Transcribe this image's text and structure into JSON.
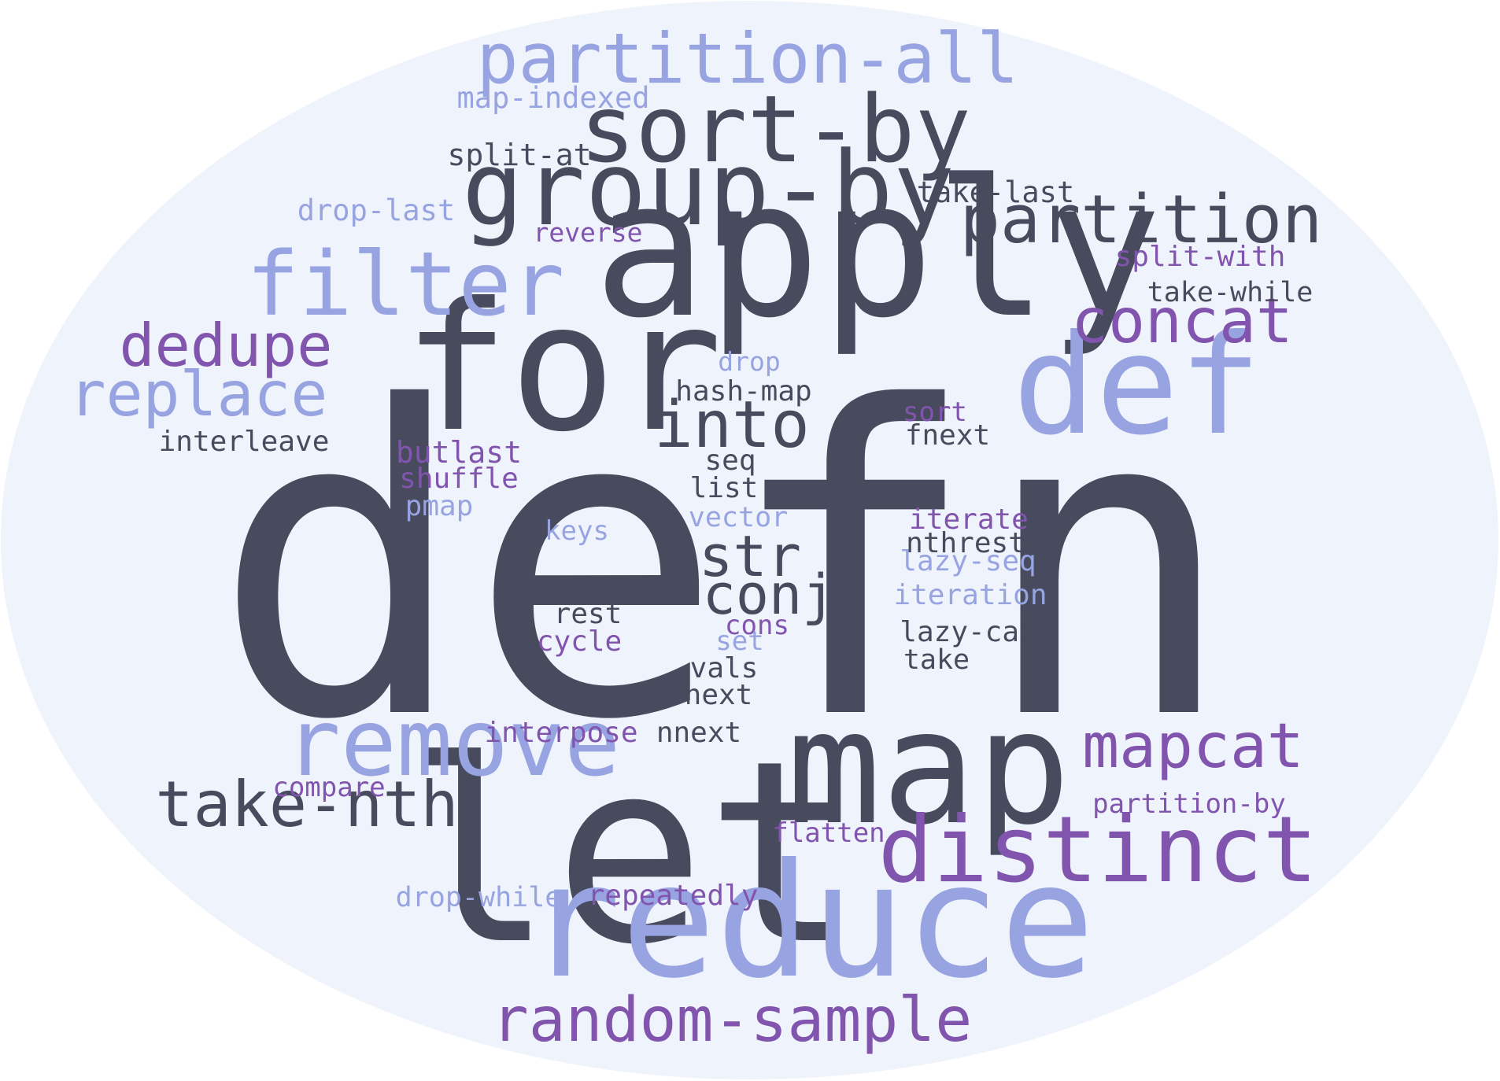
{
  "colors": {
    "background": "#ffffff",
    "ellipse": "#eff3fb",
    "dark": "#474b5d",
    "purple": "#8154ae",
    "lavender": "#98a4e2"
  },
  "words": [
    {
      "text": "defn",
      "color": "dark"
    },
    {
      "text": "apply",
      "color": "dark"
    },
    {
      "text": "let",
      "color": "dark"
    },
    {
      "text": "for",
      "color": "dark"
    },
    {
      "text": "map",
      "color": "dark"
    },
    {
      "text": "reduce",
      "color": "lavender"
    },
    {
      "text": "def",
      "color": "lavender"
    },
    {
      "text": "group-by",
      "color": "dark"
    },
    {
      "text": "sort-by",
      "color": "dark"
    },
    {
      "text": "distinct",
      "color": "purple"
    },
    {
      "text": "remove",
      "color": "lavender"
    },
    {
      "text": "filter",
      "color": "lavender"
    },
    {
      "text": "partition",
      "color": "dark"
    },
    {
      "text": "partition-all",
      "color": "lavender"
    },
    {
      "text": "into",
      "color": "dark"
    },
    {
      "text": "mapcat",
      "color": "purple"
    },
    {
      "text": "random-sample",
      "color": "purple"
    },
    {
      "text": "take-nth",
      "color": "dark"
    },
    {
      "text": "concat",
      "color": "purple"
    },
    {
      "text": "dedupe",
      "color": "purple"
    },
    {
      "text": "replace",
      "color": "lavender"
    },
    {
      "text": "str",
      "color": "dark"
    },
    {
      "text": "conj",
      "color": "dark"
    },
    {
      "text": "map-indexed",
      "color": "lavender"
    },
    {
      "text": "split-at",
      "color": "dark"
    },
    {
      "text": "drop-last",
      "color": "lavender"
    },
    {
      "text": "take-last",
      "color": "dark"
    },
    {
      "text": "reverse",
      "color": "purple"
    },
    {
      "text": "split-with",
      "color": "purple"
    },
    {
      "text": "take-while",
      "color": "dark"
    },
    {
      "text": "drop",
      "color": "lavender"
    },
    {
      "text": "hash-map",
      "color": "dark"
    },
    {
      "text": "sort",
      "color": "purple"
    },
    {
      "text": "fnext",
      "color": "dark"
    },
    {
      "text": "interleave",
      "color": "dark"
    },
    {
      "text": "butlast",
      "color": "purple"
    },
    {
      "text": "shuffle",
      "color": "purple"
    },
    {
      "text": "seq",
      "color": "dark"
    },
    {
      "text": "list",
      "color": "dark"
    },
    {
      "text": "pmap",
      "color": "lavender"
    },
    {
      "text": "keys",
      "color": "lavender"
    },
    {
      "text": "vector",
      "color": "lavender"
    },
    {
      "text": "iterate",
      "color": "purple"
    },
    {
      "text": "nthrest",
      "color": "dark"
    },
    {
      "text": "lazy-seq",
      "color": "lavender"
    },
    {
      "text": "iteration",
      "color": "lavender"
    },
    {
      "text": "rest",
      "color": "dark"
    },
    {
      "text": "cons",
      "color": "purple"
    },
    {
      "text": "cycle",
      "color": "purple"
    },
    {
      "text": "set",
      "color": "lavender"
    },
    {
      "text": "lazy-cat",
      "color": "dark"
    },
    {
      "text": "take",
      "color": "dark"
    },
    {
      "text": "vals",
      "color": "dark"
    },
    {
      "text": "next",
      "color": "dark"
    },
    {
      "text": "interpose",
      "color": "purple"
    },
    {
      "text": "nnext",
      "color": "dark"
    },
    {
      "text": "compare",
      "color": "purple"
    },
    {
      "text": "partition-by",
      "color": "purple"
    },
    {
      "text": "flatten",
      "color": "purple"
    },
    {
      "text": "drop-while",
      "color": "lavender"
    },
    {
      "text": "repeatedly",
      "color": "purple"
    }
  ]
}
